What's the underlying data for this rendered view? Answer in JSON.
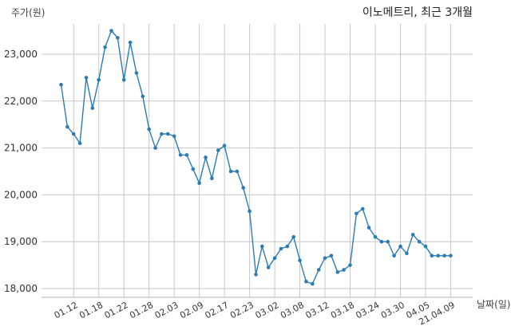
{
  "chart_data": {
    "type": "line",
    "title": "이노메트리, 최근 3개월",
    "xlabel": "날짜(일)",
    "ylabel": "주가(원)",
    "ylim": [
      17800,
      23700
    ],
    "grid": true,
    "yticks": [
      18000,
      19000,
      20000,
      21000,
      22000,
      23000
    ],
    "ytick_labels": [
      "18,000",
      "19,000",
      "20,000",
      "21,000",
      "22,000",
      "23,000"
    ],
    "xtick_labels": [
      "01.12",
      "01.18",
      "01.22",
      "01.28",
      "02.03",
      "02.09",
      "02.17",
      "02.23",
      "03.02",
      "03.08",
      "03.12",
      "03.18",
      "03.24",
      "03.30",
      "04.05",
      "21.04.09"
    ],
    "xtick_positions": [
      2,
      6,
      10,
      14,
      18,
      22,
      26,
      30,
      34,
      38,
      42,
      46,
      50,
      54,
      58,
      62
    ],
    "series": [
      {
        "color": "#2b7bb6",
        "values": [
          22350,
          21450,
          21300,
          21100,
          22500,
          21850,
          22450,
          23150,
          23500,
          23350,
          22450,
          23250,
          22600,
          22100,
          21400,
          21000,
          21300,
          21300,
          21250,
          20850,
          20850,
          20550,
          20250,
          20800,
          20350,
          20950,
          21050,
          20500,
          20500,
          20150,
          19650,
          18300,
          18900,
          18450,
          18650,
          18850,
          18900,
          19100,
          18600,
          18150,
          18100,
          18400,
          18650,
          18700,
          18350,
          18400,
          18500,
          19600,
          19700,
          19300,
          19100,
          19000,
          19000,
          18700,
          18900,
          18750,
          19150,
          19000,
          18900,
          18700,
          18700,
          18700,
          18700
        ]
      }
    ]
  }
}
